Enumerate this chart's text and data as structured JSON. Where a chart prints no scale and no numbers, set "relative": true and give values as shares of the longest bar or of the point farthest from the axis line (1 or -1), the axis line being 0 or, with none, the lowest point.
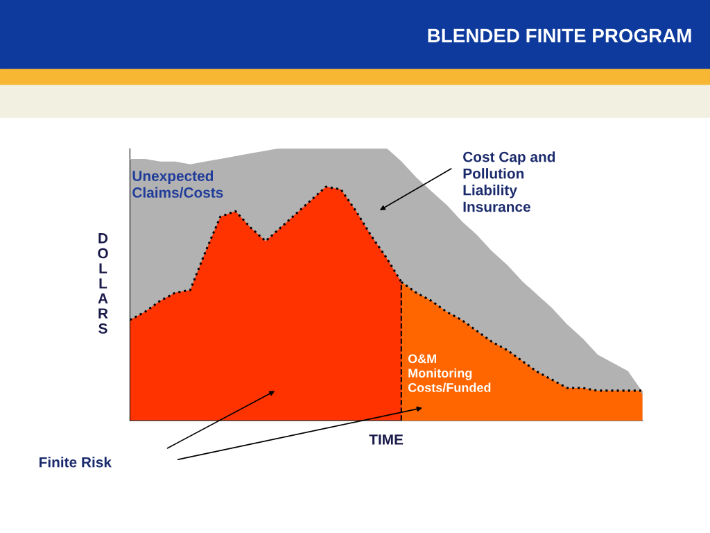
{
  "chart_data": {
    "type": "area",
    "title": "BLENDED FINITE PROGRAM",
    "xlabel": "TIME",
    "ylabel": "DOLLARS",
    "relative": true,
    "tick_labels": false,
    "categories": [
      null,
      null,
      null,
      null,
      null,
      null,
      null,
      null,
      null,
      null,
      null,
      null,
      null,
      null,
      null,
      null,
      null,
      null,
      null,
      null,
      null,
      null,
      null,
      null,
      null,
      null,
      null,
      null,
      null,
      null,
      null,
      null,
      null,
      null,
      null
    ],
    "series": [
      {
        "color": "#b2b2b2",
        "line_style": "solid",
        "values": [
          0.96,
          0.96,
          0.95,
          0.95,
          0.94,
          0.95,
          0.96,
          0.97,
          0.98,
          0.99,
          1,
          1,
          1,
          1,
          1,
          1,
          1,
          1,
          0.95,
          0.89,
          0.84,
          0.79,
          0.73,
          0.68,
          0.62,
          0.57,
          0.51,
          0.46,
          0.41,
          0.35,
          0.3,
          0.24,
          0.21,
          0.18,
          0.1
        ]
      },
      {
        "color": "#ff3300",
        "line_style": "dotted",
        "values": [
          0.37,
          0.4,
          0.44,
          0.47,
          0.48,
          0.62,
          0.75,
          0.77,
          0.71,
          0.66,
          0.71,
          0.76,
          0.81,
          0.86,
          0.85,
          0.77,
          0.68,
          0.6,
          0.51,
          null,
          null,
          null,
          null,
          null,
          null,
          null,
          null,
          null,
          null,
          null,
          null,
          null,
          null,
          null,
          null
        ]
      },
      {
        "color": "#ff6600",
        "line_style": "dotted",
        "values": [
          null,
          null,
          null,
          null,
          null,
          null,
          null,
          null,
          null,
          null,
          null,
          null,
          null,
          null,
          null,
          null,
          null,
          null,
          0.51,
          0.47,
          0.44,
          0.4,
          0.37,
          0.33,
          0.29,
          0.26,
          0.22,
          0.18,
          0.15,
          0.12,
          0.12,
          0.11,
          0.11,
          0.11,
          0.11
        ]
      }
    ],
    "annotations": [
      "Unexpected\nClaims/Costs",
      "Cost Cap and\nPollution\nLiability\nInsurance",
      "O&M\nMonitoring\nCosts/Funded",
      "Finite Risk"
    ]
  }
}
